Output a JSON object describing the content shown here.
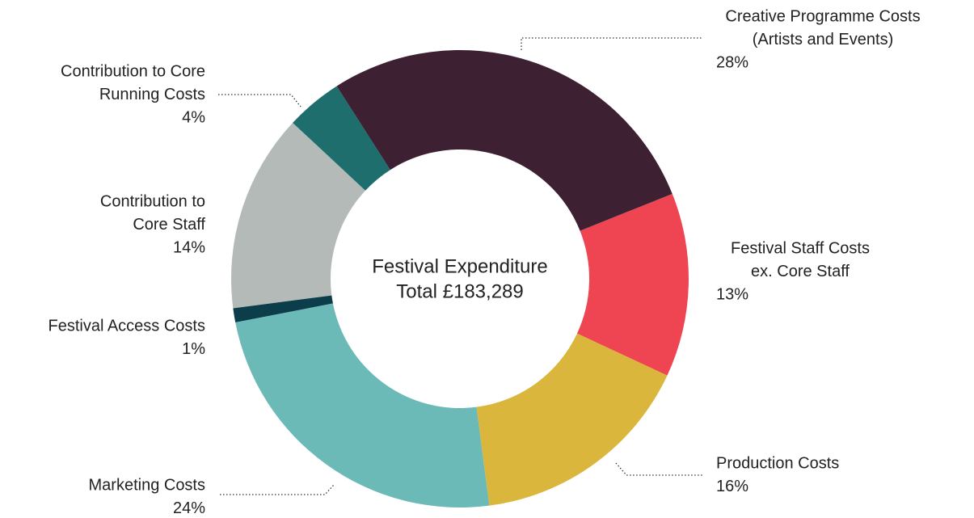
{
  "chart_data": {
    "type": "pie",
    "center_label": [
      "Festival Expenditure",
      "Total £183,289"
    ],
    "categories": [
      [
        "Creative Programme Costs",
        "(Artists and Events)"
      ],
      [
        "Festival Staff Costs",
        "ex. Core Staff"
      ],
      [
        "Production Costs"
      ],
      [
        "Marketing Costs"
      ],
      [
        "Festival Access Costs"
      ],
      [
        "Contribution to",
        "Core Staff"
      ],
      [
        "Contribution to Core",
        "Running Costs"
      ]
    ],
    "values": [
      28,
      13,
      16,
      24,
      1,
      14,
      4
    ],
    "value_labels": [
      "28%",
      "13%",
      "16%",
      "24%",
      "1%",
      "14%",
      "4%"
    ],
    "colors": [
      "#3e2033",
      "#ef4452",
      "#dbb63c",
      "#6bbab7",
      "#0b3d4a",
      "#b3bab8",
      "#1f6e6e"
    ]
  }
}
